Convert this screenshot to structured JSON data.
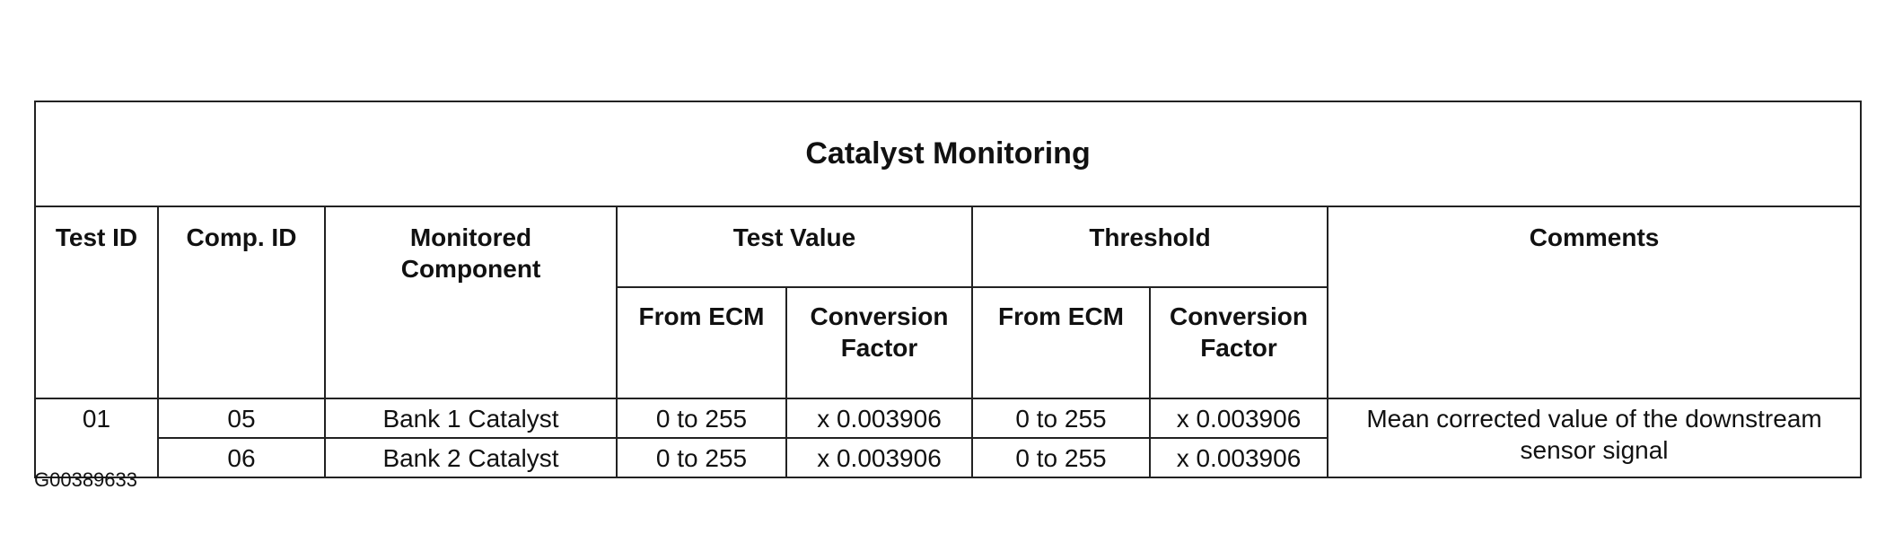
{
  "table": {
    "title": "Catalyst Monitoring",
    "header": [
      "Test ID",
      "Comp. ID",
      "Monitored Component",
      "Test Value",
      "Threshold",
      "Comments"
    ],
    "subheader": [
      "From ECM",
      "Conversion Factor",
      "From ECM",
      "Conversion Factor"
    ],
    "rows": [
      [
        "01",
        "05",
        "Bank 1 Catalyst",
        "0 to 255",
        "x 0.003906",
        "0 to 255",
        "x 0.003906",
        "Mean corrected value of the downstream sensor signal"
      ],
      [
        "06",
        "Bank 2 Catalyst",
        "0 to 255",
        "x 0.003906",
        "0 to 255",
        "x 0.003906"
      ]
    ]
  },
  "caption": "G00389633"
}
